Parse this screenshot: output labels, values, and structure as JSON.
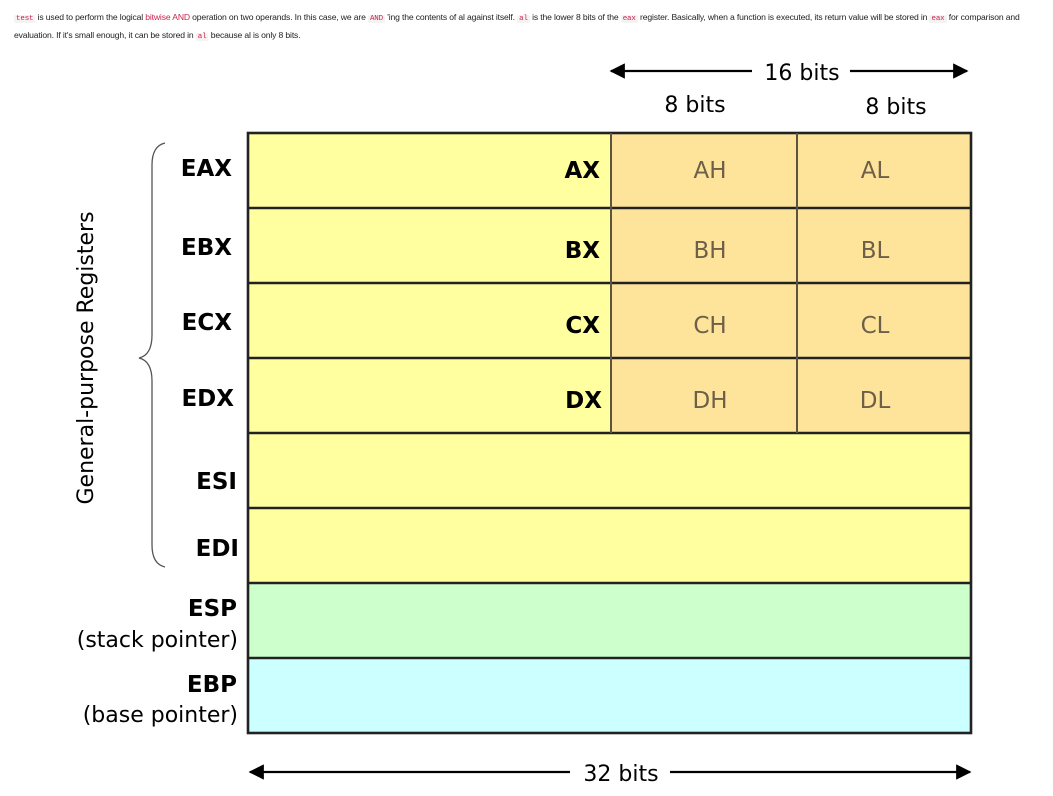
{
  "paragraph": {
    "code_test": "test",
    "t1": " is used to perform the logical ",
    "link": "bitwise AND",
    "t2": " operation on two operands. In this case, we are ",
    "code_and": "AND",
    "t3": " 'ing the contents of al against itself. ",
    "code_al_1": "al",
    "t4": " is the lower 8 bits of the ",
    "code_eax_1": "eax",
    "t5": " register. Basically, when a function is executed, its return value will be stored in ",
    "code_eax_2": "eax",
    "t6": " for comparison and evaluation. If it's small enough, it can be stored in ",
    "code_al_2": "al",
    "t7": " because al is only 8 bits."
  },
  "diagram": {
    "top_width_label": "16 bits",
    "byte_labels": [
      "8 bits",
      "8 bits"
    ],
    "bottom_width_label": "32 bits",
    "group_label": "General-purpose Registers",
    "registers": [
      {
        "name": "EAX",
        "word": "AX",
        "high": "AH",
        "low": "AL"
      },
      {
        "name": "EBX",
        "word": "BX",
        "high": "BH",
        "low": "BL"
      },
      {
        "name": "ECX",
        "word": "CX",
        "high": "CH",
        "low": "CL"
      },
      {
        "name": "EDX",
        "word": "DX",
        "high": "DH",
        "low": "DL"
      },
      {
        "name": "ESI"
      },
      {
        "name": "EDI"
      },
      {
        "name": "ESP",
        "note": "(stack pointer)"
      },
      {
        "name": "EBP",
        "note": "(base pointer)"
      }
    ],
    "colors": {
      "general": "#ffff9f",
      "low_word": "#fde49a",
      "stack_pointer": "#ccffcc",
      "base_pointer": "#ccffff",
      "border": "#222222",
      "sub_label": "#6d5f48"
    }
  }
}
